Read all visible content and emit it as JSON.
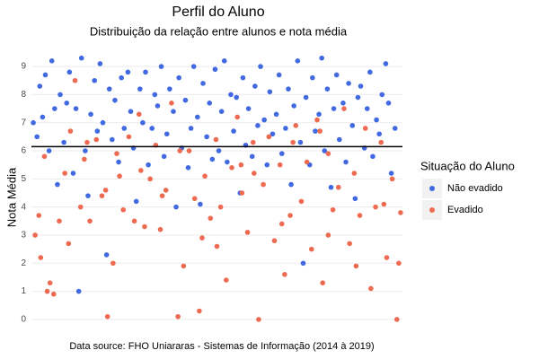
{
  "chart_data": {
    "type": "scatter",
    "title": "Perfil do Aluno",
    "subtitle": "Distribuição da relação entre alunos e nota média",
    "y_label": "Nota Média",
    "caption": "Data source: FHO Uniararas - Sistemas de Informação (2014 à 2019)",
    "legend_title": "Situação do Aluno",
    "legend_position": "right",
    "grid": true,
    "xlim": [
      0,
      400
    ],
    "ylim": [
      -0.45,
      9.45
    ],
    "yticks": [
      0,
      1,
      2,
      3,
      4,
      5,
      6,
      7,
      8,
      9
    ],
    "hline": 6.15,
    "series": [
      {
        "name": "Não evadido",
        "color": "#4169e1",
        "x": [
          2,
          6,
          9,
          12,
          15,
          19,
          22,
          25,
          28,
          31,
          35,
          38,
          41,
          45,
          48,
          51,
          54,
          58,
          61,
          64,
          68,
          71,
          74,
          77,
          81,
          84,
          87,
          90,
          94,
          97,
          100,
          104,
          107,
          110,
          113,
          117,
          120,
          123,
          126,
          130,
          133,
          136,
          140,
          143,
          146,
          149,
          153,
          156,
          159,
          162,
          166,
          169,
          172,
          175,
          179,
          182,
          185,
          189,
          192,
          195,
          198,
          202,
          205,
          208,
          211,
          215,
          218,
          221,
          225,
          228,
          231,
          234,
          238,
          241,
          244,
          247,
          251,
          254,
          257,
          260,
          264,
          267,
          270,
          274,
          277,
          280,
          283,
          287,
          290,
          293,
          296,
          300,
          303,
          306,
          310,
          313,
          316,
          319,
          323,
          326,
          329,
          332,
          336,
          339,
          342,
          346,
          349,
          352,
          355,
          359,
          362,
          365,
          368,
          372,
          375,
          378,
          382,
          385,
          388,
          392
        ],
        "values": [
          7.0,
          6.5,
          8.3,
          7.2,
          8.7,
          6.0,
          9.2,
          7.5,
          4.8,
          8.0,
          6.3,
          7.7,
          8.8,
          5.2,
          7.5,
          1.0,
          9.3,
          6.0,
          4.4,
          7.3,
          8.5,
          6.7,
          9.1,
          7.0,
          2.3,
          8.2,
          6.4,
          7.8,
          5.6,
          8.6,
          6.8,
          8.8,
          7.4,
          6.1,
          4.2,
          8.2,
          7.0,
          8.8,
          5.5,
          6.8,
          8.0,
          7.6,
          9.0,
          5.8,
          6.6,
          8.2,
          7.4,
          4.0,
          8.6,
          6.1,
          7.8,
          5.4,
          6.8,
          9.0,
          7.2,
          4.1,
          8.4,
          6.5,
          7.7,
          5.7,
          8.9,
          6.0,
          7.4,
          9.2,
          5.6,
          8.0,
          6.7,
          7.9,
          4.5,
          8.6,
          6.2,
          7.5,
          5.8,
          8.3,
          6.9,
          9.0,
          7.1,
          5.5,
          8.1,
          6.6,
          7.3,
          8.7,
          5.9,
          6.8,
          8.2,
          4.8,
          7.6,
          9.2,
          6.3,
          2.0,
          7.9,
          5.5,
          8.6,
          6.7,
          7.3,
          9.3,
          6.0,
          8.2,
          4.7,
          7.5,
          8.7,
          6.4,
          7.7,
          5.6,
          8.4,
          6.9,
          4.3,
          7.9,
          8.3,
          6.1,
          7.5,
          8.8,
          5.8,
          7.1,
          6.6,
          8.0,
          9.1,
          7.7,
          5.2,
          6.8
        ]
      },
      {
        "name": "Evadido",
        "color": "#ee6a50",
        "x": [
          4,
          10,
          14,
          20,
          24,
          30,
          36,
          42,
          47,
          53,
          57,
          63,
          70,
          76,
          82,
          88,
          92,
          99,
          105,
          111,
          116,
          122,
          128,
          134,
          139,
          145,
          151,
          158,
          164,
          170,
          176,
          181,
          187,
          193,
          199,
          204,
          210,
          216,
          222,
          227,
          233,
          239,
          245,
          250,
          256,
          262,
          268,
          273,
          279,
          285,
          291,
          297,
          302,
          308,
          314,
          320,
          325,
          331,
          337,
          343,
          348,
          354,
          360,
          366,
          371,
          377,
          383,
          389,
          394,
          398,
          8,
          40,
          80,
          118,
          160,
          200,
          240,
          282,
          320,
          380,
          17,
          60,
          95,
          141,
          184,
          226,
          270,
          311,
          350,
          396
        ],
        "values": [
          3.0,
          2.2,
          5.8,
          1.3,
          0.9,
          3.5,
          5.2,
          6.7,
          8.5,
          4.0,
          5.7,
          3.5,
          6.4,
          4.4,
          0.1,
          2.0,
          5.9,
          3.9,
          6.5,
          3.5,
          7.3,
          3.3,
          5.0,
          6.2,
          3.2,
          4.6,
          7.7,
          0.1,
          1.9,
          6.0,
          4.3,
          0.3,
          5.1,
          3.6,
          6.4,
          4.0,
          1.4,
          5.4,
          7.2,
          4.5,
          3.1,
          6.3,
          0.0,
          4.8,
          6.5,
          2.8,
          5.5,
          1.6,
          3.7,
          6.9,
          4.2,
          5.6,
          2.5,
          7.1,
          1.3,
          5.9,
          3.9,
          4.7,
          7.5,
          2.7,
          5.2,
          3.7,
          6.8,
          1.1,
          4.0,
          6.3,
          2.2,
          5.0,
          0.0,
          3.8,
          3.7,
          2.7,
          4.6,
          5.3,
          6.0,
          2.6,
          5.2,
          6.3,
          3.0,
          4.1,
          1.0,
          6.3,
          5.1,
          4.4,
          2.9,
          5.5,
          3.4,
          6.7,
          1.9,
          2.0
        ]
      }
    ]
  }
}
